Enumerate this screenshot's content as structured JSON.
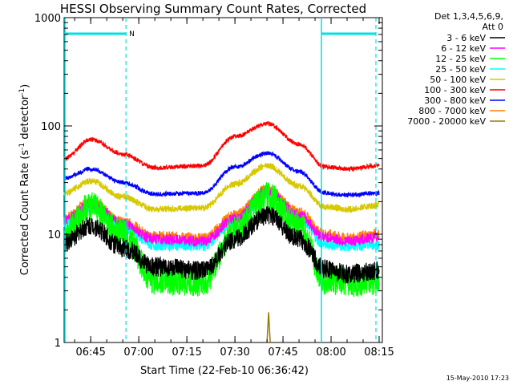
{
  "chart_data": {
    "type": "line",
    "title": "HESSI Observing Summary Count Rates, Corrected",
    "xlabel": "Start Time (22-Feb-10 06:36:42)",
    "ylabel_main": "Corrected Count Rate (s",
    "ylabel_exp1": "-1",
    "ylabel_mid": " detector",
    "ylabel_exp2": "-1",
    "ylabel_end": ")",
    "yscale": "log",
    "ylim": [
      1,
      1000
    ],
    "xlim": [
      "06:36:42",
      "08:16:00"
    ],
    "y_ticks": [
      {
        "value": 1,
        "label": "1"
      },
      {
        "value": 10,
        "label": "10"
      },
      {
        "value": 100,
        "label": "100"
      },
      {
        "value": 1000,
        "label": "1000"
      }
    ],
    "x_ticks": [
      {
        "value": "06:45",
        "label": "06:45"
      },
      {
        "value": "07:00",
        "label": "07:00"
      },
      {
        "value": "07:15",
        "label": "07:15"
      },
      {
        "value": "07:30",
        "label": "07:30"
      },
      {
        "value": "07:45",
        "label": "07:45"
      },
      {
        "value": "08:00",
        "label": "08:00"
      },
      {
        "value": "08:15",
        "label": "08:15"
      }
    ],
    "legend_header": [
      "Det 1,3,4,5,6,9,",
      "Att 0"
    ],
    "series": [
      {
        "name": "3 - 6 keV",
        "color": "#000000",
        "points": [
          [
            "06:36:42",
            8.5
          ],
          [
            "06:45",
            12
          ],
          [
            "06:55",
            7.5
          ],
          [
            "07:05",
            5
          ],
          [
            "07:20",
            4.6
          ],
          [
            "07:30",
            9
          ],
          [
            "07:40",
            15
          ],
          [
            "07:50",
            9
          ],
          [
            "07:58",
            4.8
          ],
          [
            "08:05",
            4.3
          ],
          [
            "08:15",
            4.6
          ]
        ]
      },
      {
        "name": "6 - 12 keV",
        "color": "#ff00ff",
        "points": [
          [
            "06:36:42",
            13.5
          ],
          [
            "06:45",
            19
          ],
          [
            "06:55",
            12.5
          ],
          [
            "07:05",
            9
          ],
          [
            "07:20",
            8.6
          ],
          [
            "07:30",
            14
          ],
          [
            "07:40",
            25
          ],
          [
            "07:50",
            15
          ],
          [
            "07:58",
            9.4
          ],
          [
            "08:05",
            8.6
          ],
          [
            "08:15",
            9.4
          ]
        ]
      },
      {
        "name": "12 - 25 keV",
        "color": "#00ff00",
        "points": [
          [
            "06:36:42",
            10
          ],
          [
            "06:45",
            18
          ],
          [
            "06:55",
            10
          ],
          [
            "07:05",
            3.8
          ],
          [
            "07:20",
            3.6
          ],
          [
            "07:30",
            11
          ],
          [
            "07:40",
            22
          ],
          [
            "07:50",
            12
          ],
          [
            "07:58",
            3.8
          ],
          [
            "08:05",
            3.6
          ],
          [
            "08:15",
            3.8
          ]
        ]
      },
      {
        "name": "25 - 50 keV",
        "color": "#00ffff",
        "points": [
          [
            "06:36:42",
            12.5
          ],
          [
            "06:45",
            18
          ],
          [
            "06:55",
            11.5
          ],
          [
            "07:05",
            7.9
          ],
          [
            "07:20",
            7.8
          ],
          [
            "07:30",
            13
          ],
          [
            "07:40",
            24
          ],
          [
            "07:50",
            14
          ],
          [
            "07:58",
            8
          ],
          [
            "08:05",
            7.8
          ],
          [
            "08:15",
            8
          ]
        ]
      },
      {
        "name": "50 - 100 keV",
        "color": "#d7c800",
        "points": [
          [
            "06:36:42",
            24
          ],
          [
            "06:45",
            31
          ],
          [
            "06:55",
            22
          ],
          [
            "07:05",
            17
          ],
          [
            "07:20",
            17.5
          ],
          [
            "07:30",
            29
          ],
          [
            "07:40",
            43
          ],
          [
            "07:50",
            28
          ],
          [
            "07:58",
            18
          ],
          [
            "08:05",
            17
          ],
          [
            "08:15",
            18.5
          ]
        ]
      },
      {
        "name": "100 - 300 keV",
        "color": "#ff0000",
        "points": [
          [
            "06:36:42",
            50
          ],
          [
            "06:45",
            75
          ],
          [
            "06:55",
            55
          ],
          [
            "07:05",
            41
          ],
          [
            "07:20",
            43
          ],
          [
            "07:30",
            80
          ],
          [
            "07:40",
            105
          ],
          [
            "07:50",
            68
          ],
          [
            "07:58",
            42
          ],
          [
            "08:05",
            40
          ],
          [
            "08:15",
            43
          ]
        ]
      },
      {
        "name": "300 - 800 keV",
        "color": "#0000ff",
        "points": [
          [
            "06:36:42",
            33
          ],
          [
            "06:45",
            40
          ],
          [
            "06:55",
            30
          ],
          [
            "07:05",
            23.5
          ],
          [
            "07:20",
            24
          ],
          [
            "07:30",
            42
          ],
          [
            "07:40",
            56
          ],
          [
            "07:50",
            38
          ],
          [
            "07:58",
            24
          ],
          [
            "08:05",
            23
          ],
          [
            "08:15",
            24
          ]
        ]
      },
      {
        "name": "800 - 7000 keV",
        "color": "#ff8000",
        "points": [
          [
            "06:36:42",
            14
          ],
          [
            "06:45",
            20
          ],
          [
            "06:55",
            13
          ],
          [
            "07:05",
            9.6
          ],
          [
            "07:20",
            9.2
          ],
          [
            "07:30",
            15
          ],
          [
            "07:40",
            26
          ],
          [
            "07:50",
            16
          ],
          [
            "07:58",
            10
          ],
          [
            "08:05",
            9.2
          ],
          [
            "08:15",
            10
          ]
        ]
      },
      {
        "name": "7000 - 20000 keV",
        "color": "#a07800",
        "points": [
          [
            "07:40",
            1.0
          ],
          [
            "07:40:30",
            1.9
          ],
          [
            "07:41",
            1.0
          ]
        ]
      }
    ],
    "flags": {
      "marker_label": "N"
    },
    "saa_lines": [
      "06:36:42",
      "06:56",
      "07:57",
      "08:14"
    ]
  },
  "footer": {
    "date": "15-May-2010 17:23"
  }
}
